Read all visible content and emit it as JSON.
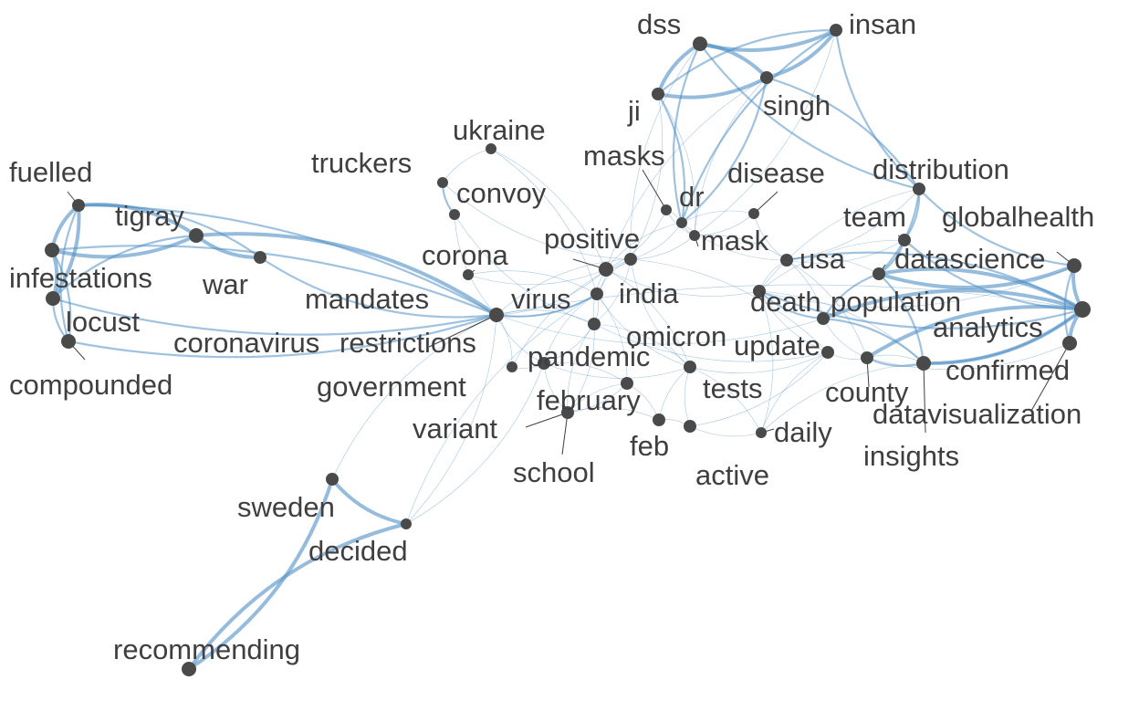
{
  "graph": {
    "node_color": "#4a4a4a",
    "edge_color": "#4f8fc4",
    "nodes": [
      {
        "id": "dss",
        "label": "dss"
      },
      {
        "id": "insan",
        "label": "insan"
      },
      {
        "id": "singh",
        "label": "singh"
      },
      {
        "id": "ji",
        "label": "ji"
      },
      {
        "id": "ukraine",
        "label": "ukraine"
      },
      {
        "id": "masks",
        "label": "masks"
      },
      {
        "id": "truckers",
        "label": "truckers"
      },
      {
        "id": "disease",
        "label": "disease"
      },
      {
        "id": "distribution",
        "label": "distribution"
      },
      {
        "id": "fuelled",
        "label": "fuelled"
      },
      {
        "id": "convoy",
        "label": "convoy"
      },
      {
        "id": "dr",
        "label": "dr"
      },
      {
        "id": "team",
        "label": "team"
      },
      {
        "id": "tigray",
        "label": "tigray"
      },
      {
        "id": "globalhealth",
        "label": "globalhealth"
      },
      {
        "id": "positive",
        "label": "positive"
      },
      {
        "id": "mask",
        "label": "mask"
      },
      {
        "id": "corona",
        "label": "corona"
      },
      {
        "id": "usa",
        "label": "usa"
      },
      {
        "id": "datascience",
        "label": "datascience"
      },
      {
        "id": "infestations",
        "label": "infestations"
      },
      {
        "id": "war",
        "label": "war"
      },
      {
        "id": "india",
        "label": "india"
      },
      {
        "id": "mandates",
        "label": "mandates"
      },
      {
        "id": "virus",
        "label": "virus"
      },
      {
        "id": "death",
        "label": "death"
      },
      {
        "id": "population",
        "label": "population"
      },
      {
        "id": "locust",
        "label": "locust"
      },
      {
        "id": "analytics",
        "label": "analytics"
      },
      {
        "id": "omicron",
        "label": "omicron"
      },
      {
        "id": "coronavirus",
        "label": "coronavirus"
      },
      {
        "id": "restrictions",
        "label": "restrictions"
      },
      {
        "id": "update",
        "label": "update"
      },
      {
        "id": "pandemic",
        "label": "pandemic"
      },
      {
        "id": "confirmed",
        "label": "confirmed"
      },
      {
        "id": "compounded",
        "label": "compounded"
      },
      {
        "id": "government",
        "label": "government"
      },
      {
        "id": "tests",
        "label": "tests"
      },
      {
        "id": "county",
        "label": "county"
      },
      {
        "id": "february",
        "label": "february"
      },
      {
        "id": "datavisualization",
        "label": "datavisualization"
      },
      {
        "id": "variant",
        "label": "variant"
      },
      {
        "id": "daily",
        "label": "daily"
      },
      {
        "id": "feb",
        "label": "feb"
      },
      {
        "id": "insights",
        "label": "insights"
      },
      {
        "id": "school",
        "label": "school"
      },
      {
        "id": "active",
        "label": "active"
      },
      {
        "id": "sweden",
        "label": "sweden"
      },
      {
        "id": "decided",
        "label": "decided"
      },
      {
        "id": "recommending",
        "label": "recommending"
      }
    ],
    "edges": [
      [
        "dss",
        "insan",
        3
      ],
      [
        "dss",
        "singh",
        3
      ],
      [
        "dss",
        "ji",
        3
      ],
      [
        "insan",
        "singh",
        3
      ],
      [
        "ji",
        "singh",
        3
      ],
      [
        "ji",
        "insan",
        2
      ],
      [
        "insan",
        "distribution",
        2
      ],
      [
        "singh",
        "distribution",
        2
      ],
      [
        "dss",
        "distribution",
        2
      ],
      [
        "ji",
        "dr",
        2
      ],
      [
        "dss",
        "dr",
        2
      ],
      [
        "singh",
        "dr",
        2
      ],
      [
        "insan",
        "dr",
        2
      ],
      [
        "ji",
        "mask",
        1
      ],
      [
        "singh",
        "mask",
        1
      ],
      [
        "distribution",
        "team",
        2
      ],
      [
        "distribution",
        "globalhealth",
        2
      ],
      [
        "distribution",
        "datascience",
        2
      ],
      [
        "team",
        "analytics",
        2
      ],
      [
        "datascience",
        "analytics",
        3
      ],
      [
        "globalhealth",
        "analytics",
        3
      ],
      [
        "population",
        "analytics",
        3
      ],
      [
        "confirmed",
        "analytics",
        3
      ],
      [
        "datavisualization",
        "analytics",
        3
      ],
      [
        "insights",
        "analytics",
        2
      ],
      [
        "county",
        "analytics",
        3
      ],
      [
        "death",
        "analytics",
        2
      ],
      [
        "usa",
        "analytics",
        2
      ],
      [
        "datascience",
        "population",
        2
      ],
      [
        "team",
        "datascience",
        2
      ],
      [
        "datascience",
        "globalhealth",
        3
      ],
      [
        "population",
        "confirmed",
        2
      ],
      [
        "county",
        "confirmed",
        2
      ],
      [
        "datavisualization",
        "globalhealth",
        2
      ],
      [
        "insights",
        "datascience",
        2
      ],
      [
        "usa",
        "population",
        1
      ],
      [
        "death",
        "population",
        2
      ],
      [
        "fuelled",
        "tigray",
        3
      ],
      [
        "fuelled",
        "infestations",
        3
      ],
      [
        "fuelled",
        "locust",
        3
      ],
      [
        "fuelled",
        "compounded",
        2
      ],
      [
        "fuelled",
        "war",
        2
      ],
      [
        "tigray",
        "war",
        3
      ],
      [
        "infestations",
        "locust",
        3
      ],
      [
        "infestations",
        "tigray",
        3
      ],
      [
        "locust",
        "tigray",
        2
      ],
      [
        "compounded",
        "infestations",
        2
      ],
      [
        "compounded",
        "locust",
        2
      ],
      [
        "compounded",
        "restrictions",
        2
      ],
      [
        "tigray",
        "restrictions",
        3
      ],
      [
        "war",
        "restrictions",
        2
      ],
      [
        "infestations",
        "restrictions",
        2
      ],
      [
        "locust",
        "restrictions",
        2
      ],
      [
        "fuelled",
        "restrictions",
        2
      ],
      [
        "restrictions",
        "virus",
        2
      ],
      [
        "restrictions",
        "omicron",
        1
      ],
      [
        "restrictions",
        "positive",
        1
      ],
      [
        "restrictions",
        "india",
        1
      ],
      [
        "restrictions",
        "population",
        1
      ],
      [
        "restrictions",
        "analytics",
        1
      ],
      [
        "restrictions",
        "pandemic",
        1
      ],
      [
        "restrictions",
        "government",
        1
      ],
      [
        "truckers",
        "convoy",
        2
      ],
      [
        "truckers",
        "ukraine",
        1
      ],
      [
        "convoy",
        "mandates",
        1
      ],
      [
        "ukraine",
        "positive",
        1
      ],
      [
        "sweden",
        "decided",
        3
      ],
      [
        "sweden",
        "recommending",
        3
      ],
      [
        "decided",
        "recommending",
        3
      ],
      [
        "sweden",
        "restrictions",
        1
      ],
      [
        "decided",
        "restrictions",
        1
      ],
      [
        "decided",
        "virus",
        1
      ],
      [
        "decided",
        "pandemic",
        1
      ],
      [
        "virus",
        "india",
        1
      ],
      [
        "virus",
        "positive",
        1
      ],
      [
        "virus",
        "omicron",
        1
      ],
      [
        "virus",
        "pandemic",
        1
      ],
      [
        "india",
        "positive",
        1
      ],
      [
        "india",
        "mask",
        1
      ],
      [
        "india",
        "omicron",
        1
      ],
      [
        "india",
        "tests",
        1
      ],
      [
        "omicron",
        "pandemic",
        1
      ],
      [
        "omicron",
        "update",
        1
      ],
      [
        "omicron",
        "tests",
        1
      ],
      [
        "omicron",
        "variant",
        1
      ],
      [
        "positive",
        "tests",
        1
      ],
      [
        "positive",
        "death",
        1
      ],
      [
        "mask",
        "masks",
        1
      ],
      [
        "mask",
        "disease",
        1
      ],
      [
        "mask",
        "dr",
        1
      ],
      [
        "dr",
        "masks",
        1
      ],
      [
        "dr",
        "disease",
        1
      ],
      [
        "dr",
        "positive",
        1
      ],
      [
        "dr",
        "india",
        1
      ],
      [
        "death",
        "update",
        1
      ],
      [
        "death",
        "confirmed",
        1
      ],
      [
        "update",
        "daily",
        1
      ],
      [
        "update",
        "tests",
        1
      ],
      [
        "tests",
        "active",
        1
      ],
      [
        "tests",
        "daily",
        1
      ],
      [
        "feb",
        "february",
        1
      ],
      [
        "feb",
        "active",
        1
      ],
      [
        "february",
        "school",
        1
      ],
      [
        "february",
        "variant",
        1
      ],
      [
        "pandemic",
        "school",
        1
      ],
      [
        "pandemic",
        "government",
        1
      ],
      [
        "usa",
        "death",
        1
      ],
      [
        "usa",
        "county",
        1
      ],
      [
        "update",
        "county",
        1
      ],
      [
        "daily",
        "confirmed",
        1
      ],
      [
        "active",
        "daily",
        1
      ],
      [
        "corona",
        "virus",
        1
      ],
      [
        "corona",
        "positive",
        1
      ],
      [
        "coronavirus",
        "restrictions",
        1
      ],
      [
        "mandates",
        "virus",
        1
      ],
      [
        "government",
        "india",
        1
      ],
      [
        "variant",
        "omicron",
        1
      ],
      [
        "school",
        "feb",
        1
      ],
      [
        "truckers",
        "india",
        1
      ],
      [
        "ukraine",
        "virus",
        1
      ],
      [
        "convoy",
        "omicron",
        1
      ],
      [
        "masks",
        "positive",
        1
      ],
      [
        "disease",
        "usa",
        1
      ],
      [
        "team",
        "usa",
        1
      ],
      [
        "team",
        "death",
        1
      ],
      [
        "globalhealth",
        "death",
        1
      ],
      [
        "datascience",
        "usa",
        1
      ],
      [
        "county",
        "population",
        1
      ],
      [
        "insights",
        "county",
        1
      ],
      [
        "datavisualization",
        "county",
        1
      ],
      [
        "active",
        "update",
        1
      ],
      [
        "feb",
        "tests",
        1
      ],
      [
        "daily",
        "death",
        1
      ],
      [
        "pandemic",
        "february",
        1
      ],
      [
        "pandemic",
        "tests",
        1
      ],
      [
        "india",
        "update",
        1
      ],
      [
        "virus",
        "tests",
        1
      ],
      [
        "virus",
        "february",
        1
      ],
      [
        "positive",
        "omicron",
        1
      ],
      [
        "mask",
        "usa",
        1
      ],
      [
        "dr",
        "usa",
        1
      ],
      [
        "ji",
        "india",
        1
      ],
      [
        "singh",
        "positive",
        1
      ],
      [
        "insan",
        "mask",
        1
      ],
      [
        "dss",
        "india",
        1
      ],
      [
        "distribution",
        "usa",
        1
      ],
      [
        "distribution",
        "death",
        1
      ]
    ]
  }
}
